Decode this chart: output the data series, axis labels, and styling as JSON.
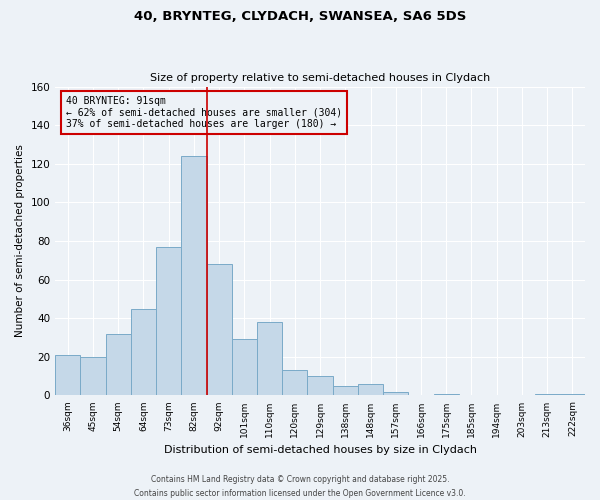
{
  "title1": "40, BRYNTEG, CLYDACH, SWANSEA, SA6 5DS",
  "title2": "Size of property relative to semi-detached houses in Clydach",
  "xlabel": "Distribution of semi-detached houses by size in Clydach",
  "ylabel": "Number of semi-detached properties",
  "categories": [
    "36sqm",
    "45sqm",
    "54sqm",
    "64sqm",
    "73sqm",
    "82sqm",
    "92sqm",
    "101sqm",
    "110sqm",
    "120sqm",
    "129sqm",
    "138sqm",
    "148sqm",
    "157sqm",
    "166sqm",
    "175sqm",
    "185sqm",
    "194sqm",
    "203sqm",
    "213sqm",
    "222sqm"
  ],
  "values": [
    21,
    20,
    32,
    45,
    77,
    124,
    68,
    29,
    38,
    13,
    10,
    5,
    6,
    2,
    0,
    1,
    0,
    0,
    0,
    1,
    1
  ],
  "bar_color": "#c5d8e8",
  "bar_edge_color": "#7aaac8",
  "property_label": "40 BRYNTEG: 91sqm",
  "pct_smaller": 62,
  "n_smaller": 304,
  "pct_larger": 37,
  "n_larger": 180,
  "vline_color": "#cc0000",
  "vline_bar_index": 6,
  "ylim": [
    0,
    160
  ],
  "yticks": [
    0,
    20,
    40,
    60,
    80,
    100,
    120,
    140,
    160
  ],
  "bg_color": "#edf2f7",
  "footer": "Contains HM Land Registry data © Crown copyright and database right 2025.\nContains public sector information licensed under the Open Government Licence v3.0."
}
